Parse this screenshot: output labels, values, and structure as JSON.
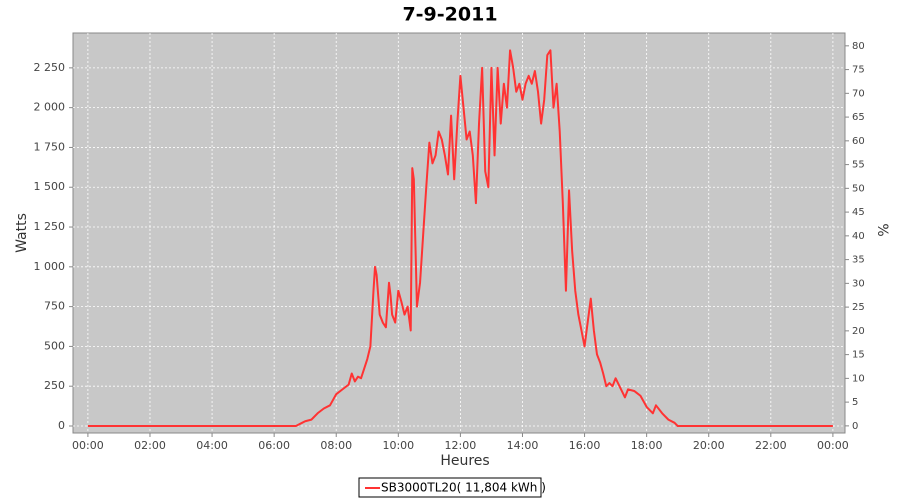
{
  "chart_data": {
    "type": "line",
    "title": "7-9-2011",
    "x_label": "Heures",
    "y_label": "Watts",
    "y2_label": "%",
    "x": [
      0,
      6.7,
      6.9,
      7.0,
      7.2,
      7.4,
      7.6,
      7.8,
      8.0,
      8.2,
      8.4,
      8.5,
      8.6,
      8.7,
      8.8,
      8.9,
      9.0,
      9.1,
      9.2,
      9.25,
      9.3,
      9.4,
      9.5,
      9.6,
      9.7,
      9.75,
      9.8,
      9.9,
      10.0,
      10.1,
      10.2,
      10.3,
      10.4,
      10.45,
      10.5,
      10.6,
      10.7,
      10.8,
      10.9,
      11.0,
      11.1,
      11.2,
      11.3,
      11.4,
      11.5,
      11.6,
      11.7,
      11.8,
      11.9,
      12.0,
      12.1,
      12.2,
      12.3,
      12.4,
      12.5,
      12.6,
      12.7,
      12.8,
      12.9,
      13.0,
      13.1,
      13.2,
      13.3,
      13.4,
      13.5,
      13.6,
      13.7,
      13.8,
      13.9,
      14.0,
      14.1,
      14.2,
      14.3,
      14.4,
      14.5,
      14.6,
      14.7,
      14.8,
      14.9,
      15.0,
      15.1,
      15.2,
      15.3,
      15.4,
      15.5,
      15.6,
      15.7,
      15.8,
      15.9,
      16.0,
      16.1,
      16.2,
      16.3,
      16.4,
      16.5,
      16.6,
      16.7,
      16.8,
      16.9,
      17.0,
      17.1,
      17.3,
      17.4,
      17.6,
      17.8,
      18.0,
      18.2,
      18.3,
      18.5,
      18.7,
      18.9,
      19.0,
      24
    ],
    "series": [
      {
        "name": "SB3000TL20( 11,804 kWh )",
        "color": "#ff3333",
        "values": [
          0,
          0,
          20,
          30,
          40,
          80,
          110,
          130,
          200,
          230,
          260,
          330,
          280,
          310,
          300,
          360,
          420,
          500,
          850,
          1000,
          950,
          700,
          650,
          620,
          900,
          820,
          700,
          650,
          850,
          780,
          700,
          750,
          600,
          1620,
          1550,
          750,
          900,
          1200,
          1500,
          1780,
          1650,
          1700,
          1850,
          1800,
          1700,
          1580,
          1950,
          1550,
          1900,
          2200,
          2000,
          1800,
          1850,
          1700,
          1400,
          1900,
          2250,
          1600,
          1500,
          2250,
          1700,
          2250,
          1900,
          2150,
          2000,
          2360,
          2250,
          2100,
          2150,
          2050,
          2150,
          2200,
          2150,
          2230,
          2100,
          1900,
          2050,
          2330,
          2360,
          2000,
          2150,
          1850,
          1400,
          850,
          1480,
          1100,
          850,
          700,
          600,
          500,
          650,
          800,
          600,
          450,
          400,
          330,
          250,
          270,
          250,
          300,
          260,
          180,
          230,
          220,
          190,
          120,
          80,
          130,
          80,
          40,
          20,
          0,
          0
        ]
      }
    ],
    "xlim": [
      -0.48,
      24.39
    ],
    "xticks": [
      {
        "value": 0,
        "label": "00:00"
      },
      {
        "value": 2,
        "label": "02:00"
      },
      {
        "value": 4,
        "label": "04:00"
      },
      {
        "value": 6,
        "label": "06:00"
      },
      {
        "value": 8,
        "label": "08:00"
      },
      {
        "value": 10,
        "label": "10:00"
      },
      {
        "value": 12,
        "label": "12:00"
      },
      {
        "value": 14,
        "label": "14:00"
      },
      {
        "value": 16,
        "label": "16:00"
      },
      {
        "value": 18,
        "label": "18:00"
      },
      {
        "value": 20,
        "label": "20:00"
      },
      {
        "value": 22,
        "label": "22:00"
      },
      {
        "value": 24,
        "label": "00:00"
      }
    ],
    "ylim": [
      -44,
      2469
    ],
    "yticks": [
      0,
      250,
      500,
      750,
      {
        "value": 1000,
        "label": "1 000"
      },
      {
        "value": 1250,
        "label": "1 250"
      },
      {
        "value": 1500,
        "label": "1 500"
      },
      {
        "value": 1750,
        "label": "1 750"
      },
      {
        "value": 2000,
        "label": "2 000"
      },
      {
        "value": 2250,
        "label": "2 250"
      }
    ],
    "y2lim": [
      -1.5,
      82.7
    ],
    "y2ticks": [
      0,
      5,
      10,
      15,
      20,
      25,
      30,
      35,
      40,
      45,
      50,
      55,
      60,
      65,
      70,
      75,
      80
    ],
    "grid": true
  }
}
